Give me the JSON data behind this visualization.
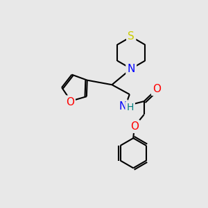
{
  "bg_color": "#e8e8e8",
  "atom_colors": {
    "S": "#cccc00",
    "N": "#0000ff",
    "O": "#ff0000",
    "H": "#008080"
  },
  "bond_color": "#000000",
  "bond_width": 1.5,
  "font_size": 11
}
